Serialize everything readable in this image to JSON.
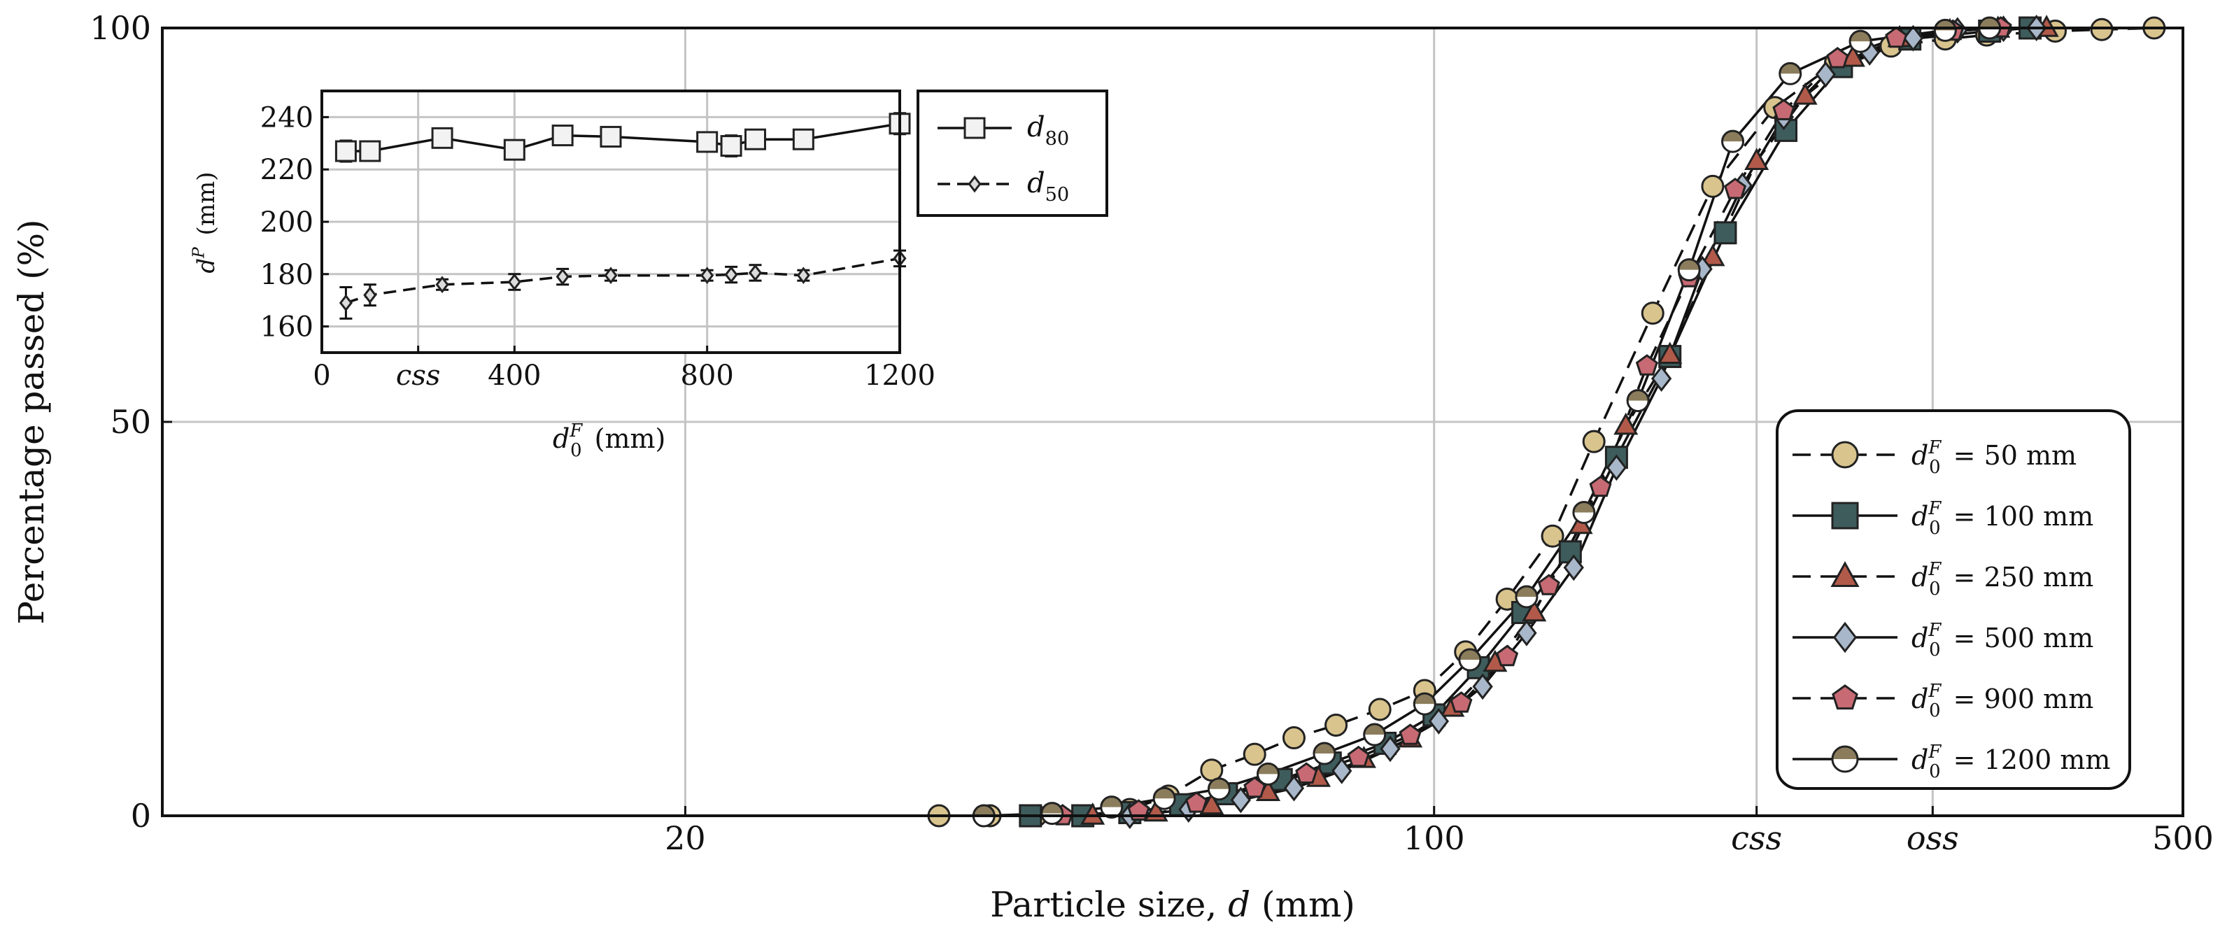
{
  "chart_data": [
    {
      "type": "line",
      "title": "",
      "xlabel": "Particle size, d (mm)",
      "ylabel": "Percentage passed (%)",
      "x_scale": "log",
      "xlim": [
        6.5,
        500
      ],
      "ylim": [
        0,
        100
      ],
      "x_ticks": [
        {
          "value": 20,
          "label": "20"
        },
        {
          "value": 100,
          "label": "100"
        },
        {
          "value": 200,
          "label": "css"
        },
        {
          "value": 292,
          "label": "oss"
        },
        {
          "value": 500,
          "label": "500"
        }
      ],
      "y_ticks": [
        {
          "value": 0,
          "label": "0"
        },
        {
          "value": 50,
          "label": "50"
        },
        {
          "value": 100,
          "label": "100"
        }
      ],
      "legend_position": "lower-right",
      "series": [
        {
          "name": "d0F = 50 mm",
          "legend": {
            "base": "d",
            "sub": "0",
            "sup": "F",
            "suffix": " = 50 mm"
          },
          "marker": "circle",
          "fill": "#d9c48e",
          "dash": true,
          "x": [
            34.5,
            38.5,
            42.5,
            47,
            52,
            56.5,
            62,
            68,
            74,
            81,
            89,
            98,
            107,
            117,
            129,
            141,
            160,
            182,
            208,
            237,
            267,
            300,
            328,
            380,
            420,
            470
          ],
          "y": [
            0,
            0,
            0,
            0,
            0.8,
            2.5,
            5.8,
            7.8,
            9.9,
            11.5,
            13.5,
            15.9,
            20.8,
            27.5,
            35.5,
            47.5,
            63.8,
            79.9,
            89.9,
            95.6,
            97.7,
            98.6,
            99.1,
            99.6,
            99.8,
            100
          ]
        },
        {
          "name": "d0F = 100 mm",
          "legend": {
            "base": "d",
            "sub": "0",
            "sup": "F",
            "suffix": " = 100 mm"
          },
          "marker": "square",
          "fill": "#3e5c5c",
          "dash": false,
          "x": [
            42,
            47,
            52,
            58,
            64,
            72,
            80,
            90,
            100,
            110,
            121,
            134,
            148,
            166,
            187,
            213,
            240,
            278,
            330,
            360
          ],
          "y": [
            0,
            0,
            0.4,
            1.4,
            2.8,
            4.6,
            6.7,
            9.2,
            12.8,
            18.8,
            25.8,
            33.5,
            45.5,
            58.3,
            74,
            87,
            95.1,
            98.6,
            99.6,
            100
          ]
        },
        {
          "name": "d0F = 250 mm",
          "legend": {
            "base": "d",
            "sub": "0",
            "sup": "F",
            "suffix": " = 250 mm"
          },
          "marker": "triangle",
          "fill": "#b25a4a",
          "dash": true,
          "x": [
            48,
            55,
            62,
            70,
            78,
            86,
            95,
            104,
            114,
            124,
            137,
            151,
            166,
            182,
            200,
            222,
            246,
            272,
            303,
            336,
            373
          ],
          "y": [
            0,
            0.4,
            1.3,
            3,
            4.8,
            7.2,
            9.8,
            13.7,
            19.4,
            25.8,
            36.9,
            49.5,
            58.5,
            70.9,
            83.1,
            91.4,
            96.2,
            98.7,
            99.6,
            99.9,
            100
          ]
        },
        {
          "name": "d0F = 500 mm",
          "legend": {
            "base": "d",
            "sub": "0",
            "sup": "F",
            "suffix": " = 500 mm"
          },
          "marker": "diamond",
          "fill": "#a8b7c9",
          "dash": false,
          "x": [
            52,
            59,
            66,
            74,
            82,
            91,
            101,
            111,
            122,
            135,
            148,
            163,
            178,
            194,
            212,
            232,
            255,
            280,
            308,
            340,
            365
          ],
          "y": [
            0,
            0.8,
            2,
            3.5,
            5.7,
            8.5,
            12,
            16.4,
            23.2,
            31.5,
            44.2,
            55.5,
            69.4,
            80,
            88.7,
            94.1,
            96.9,
            98.7,
            99.7,
            99.9,
            100
          ]
        },
        {
          "name": "d0F = 900 mm",
          "legend": {
            "base": "d",
            "sub": "0",
            "sup": "F",
            "suffix": " = 900 mm"
          },
          "marker": "pentagon",
          "fill": "#c76a73",
          "dash": true,
          "x": [
            45,
            53,
            60,
            68,
            76,
            85,
            95,
            106,
            117,
            128,
            143,
            158,
            173,
            191,
            212,
            238,
            270,
            305,
            338
          ],
          "y": [
            0,
            0.6,
            1.6,
            3.5,
            5.3,
            7.4,
            10.2,
            14.3,
            20.2,
            29.2,
            41.7,
            57.1,
            68.3,
            79.5,
            89.5,
            96.1,
            98.7,
            99.6,
            100
          ]
        },
        {
          "name": "d0F = 1200 mm",
          "legend": {
            "base": "d",
            "sub": "0",
            "sup": "F",
            "suffix": " = 1200 mm"
          },
          "marker": "halfcircle",
          "fill": "#8b7d5c",
          "dash": false,
          "x": [
            38,
            44,
            50,
            56,
            63,
            70,
            79,
            88,
            98,
            108,
            122,
            138,
            155,
            173,
            190,
            215,
            250,
            300,
            330
          ],
          "y": [
            0,
            0.3,
            1.1,
            2.2,
            3.4,
            5.3,
            7.9,
            10.3,
            14.2,
            19.8,
            27.8,
            38.5,
            52.7,
            69.3,
            85.6,
            94.2,
            98.3,
            99.7,
            100
          ]
        }
      ]
    },
    {
      "type": "line",
      "title": "",
      "xlabel": {
        "base": "d",
        "sub": "0",
        "sup": "F",
        "suffix": " (mm)"
      },
      "ylabel": {
        "base": "d",
        "sup": "P",
        "suffix": " (mm)"
      },
      "xlim": [
        0,
        1200
      ],
      "ylim": [
        150,
        250
      ],
      "x_ticks": [
        {
          "value": 0,
          "label": "0"
        },
        {
          "value": 200,
          "label": "css"
        },
        {
          "value": 400,
          "label": "400"
        },
        {
          "value": 800,
          "label": "800"
        },
        {
          "value": 1200,
          "label": "1200"
        }
      ],
      "y_ticks": [
        {
          "value": 160,
          "label": "160"
        },
        {
          "value": 180,
          "label": "180"
        },
        {
          "value": 200,
          "label": "200"
        },
        {
          "value": 220,
          "label": "220"
        },
        {
          "value": 240,
          "label": "240"
        }
      ],
      "legend_position": "outside-right",
      "series": [
        {
          "name": "d80",
          "legend": {
            "base": "d",
            "sub": "80"
          },
          "marker": "square",
          "dash": false,
          "x": [
            50,
            100,
            250,
            400,
            500,
            600,
            800,
            850,
            900,
            1000,
            1200
          ],
          "y": [
            227,
            227,
            232,
            227.5,
            233,
            232.5,
            230.5,
            229,
            231.5,
            231.5,
            237.5
          ],
          "err": [
            4,
            3,
            2,
            3,
            3,
            3,
            3,
            4,
            3,
            2,
            4
          ]
        },
        {
          "name": "d50",
          "legend": {
            "base": "d",
            "sub": "50"
          },
          "marker": "diamond",
          "dash": true,
          "x": [
            50,
            100,
            250,
            400,
            500,
            600,
            800,
            850,
            900,
            1000,
            1200
          ],
          "y": [
            169,
            172,
            176,
            177,
            179,
            179.5,
            179.5,
            179.8,
            180.5,
            179.5,
            186
          ],
          "err": [
            6,
            4,
            2,
            3,
            3,
            2,
            2,
            3,
            3,
            2,
            3
          ]
        }
      ]
    }
  ]
}
